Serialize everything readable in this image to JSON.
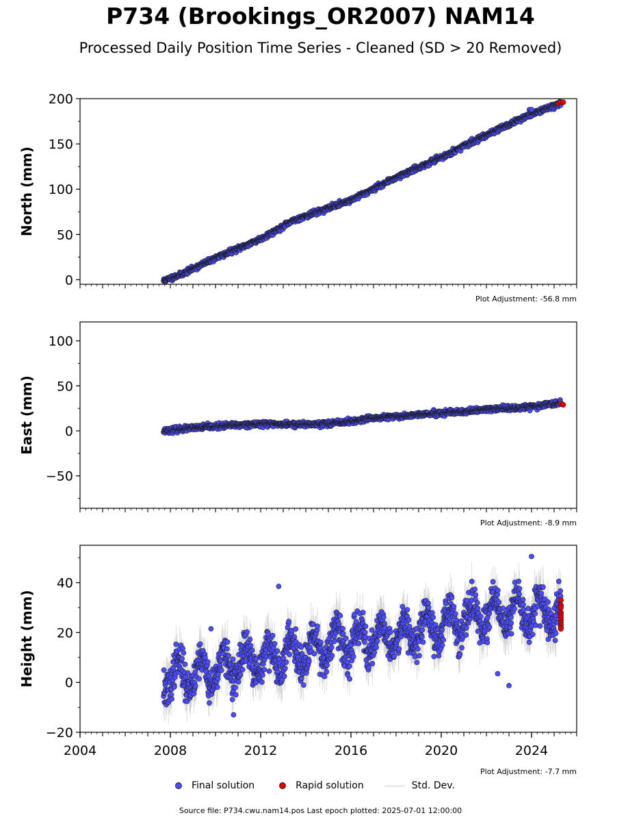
{
  "page": {
    "title": "P734 (Brookings_OR2007) NAM14",
    "subtitle": "Processed Daily Position Time Series - Cleaned (SD > 20 Removed)",
    "footer": "Source file: P734.cwu.nam14.pos  Last epoch plotted: 2025-07-01 12:00:00"
  },
  "legend": {
    "final": "Final solution",
    "rapid": "Rapid solution",
    "std": "Std. Dev."
  },
  "colors": {
    "final": "#4d4dff",
    "rapid": "#e00000",
    "marker_edge": "#1a1a1a",
    "std": "#b0b0b0",
    "axis": "#000000"
  },
  "chart_data": [
    {
      "type": "scatter",
      "panel": "north",
      "ylabel": "North (mm)",
      "adjustment": "Plot Adjustment: -56.8 mm",
      "xlim": [
        2004,
        2026
      ],
      "ylim": [
        -5,
        200
      ],
      "yticks": [
        0,
        50,
        100,
        150,
        200
      ],
      "ytick_labels": [
        "0",
        "50",
        "100",
        "150",
        "200"
      ],
      "show_xtick_labels": false,
      "trend": [
        [
          2007.7,
          -1
        ],
        [
          2008.5,
          6
        ],
        [
          2010,
          24
        ],
        [
          2012,
          45
        ],
        [
          2013.5,
          66
        ],
        [
          2016,
          88
        ],
        [
          2018,
          113
        ],
        [
          2020,
          135
        ],
        [
          2022,
          160
        ],
        [
          2024,
          183
        ],
        [
          2025.3,
          195
        ]
      ],
      "scatter_sd": 1.3,
      "std_dev": 1.2,
      "outliers": [
        [
          2024.0,
          188
        ]
      ],
      "rapid": [
        [
          2025.2,
          195
        ],
        [
          2025.3,
          196
        ],
        [
          2025.4,
          196
        ]
      ],
      "seed": 11
    },
    {
      "type": "scatter",
      "panel": "east",
      "ylabel": "East (mm)",
      "adjustment": "Plot Adjustment: -8.9 mm",
      "xlim": [
        2004,
        2026
      ],
      "ylim": [
        -86,
        121
      ],
      "yticks": [
        -50,
        0,
        50,
        100
      ],
      "ytick_labels": [
        "−50",
        "0",
        "50",
        "100"
      ],
      "show_xtick_labels": false,
      "trend": [
        [
          2007.7,
          0
        ],
        [
          2008.5,
          2
        ],
        [
          2010,
          5
        ],
        [
          2012,
          8
        ],
        [
          2014,
          7
        ],
        [
          2015.5,
          9
        ],
        [
          2017,
          14
        ],
        [
          2019,
          18
        ],
        [
          2021,
          21
        ],
        [
          2022,
          24
        ],
        [
          2023,
          25
        ],
        [
          2024,
          27
        ],
        [
          2025.3,
          31
        ]
      ],
      "scatter_sd": 1.4,
      "std_dev": 1.3,
      "outliers": [],
      "rapid": [
        [
          2025.3,
          30
        ],
        [
          2025.4,
          29
        ]
      ],
      "seed": 23
    },
    {
      "type": "scatter",
      "panel": "height",
      "ylabel": "Height (mm)",
      "adjustment": "Plot Adjustment: -7.7 mm",
      "xlim": [
        2004,
        2026
      ],
      "ylim": [
        -20,
        55
      ],
      "yticks": [
        -20,
        0,
        20,
        40
      ],
      "ytick_labels": [
        "−20",
        "0",
        "20",
        "40"
      ],
      "xticks": [
        2004,
        2008,
        2012,
        2016,
        2020,
        2024
      ],
      "xtick_labels": [
        "2004",
        "2008",
        "2012",
        "2016",
        "2020",
        "2024"
      ],
      "show_xtick_labels": true,
      "trend": [
        [
          2007.7,
          2
        ],
        [
          2010,
          5
        ],
        [
          2012,
          9
        ],
        [
          2014,
          13
        ],
        [
          2016,
          17
        ],
        [
          2018,
          19
        ],
        [
          2020,
          23
        ],
        [
          2022,
          27
        ],
        [
          2024,
          29
        ],
        [
          2025.3,
          27
        ]
      ],
      "seasonal_amp": 6,
      "scatter_sd": 3.6,
      "std_dev": 6,
      "outliers": [
        [
          2012.8,
          38.5
        ],
        [
          2022.5,
          3.5
        ],
        [
          2023.0,
          -1.3
        ],
        [
          2024.0,
          50.5
        ],
        [
          2009.8,
          21.5
        ],
        [
          2010.8,
          -13
        ]
      ],
      "rapid": [
        [
          2025.3,
          33
        ],
        [
          2025.3,
          31
        ],
        [
          2025.3,
          30
        ],
        [
          2025.3,
          28
        ],
        [
          2025.3,
          27
        ],
        [
          2025.3,
          26
        ],
        [
          2025.3,
          25
        ],
        [
          2025.3,
          24
        ],
        [
          2025.3,
          23
        ],
        [
          2025.3,
          22
        ],
        [
          2025.3,
          21.5
        ]
      ],
      "seed": 37
    }
  ]
}
